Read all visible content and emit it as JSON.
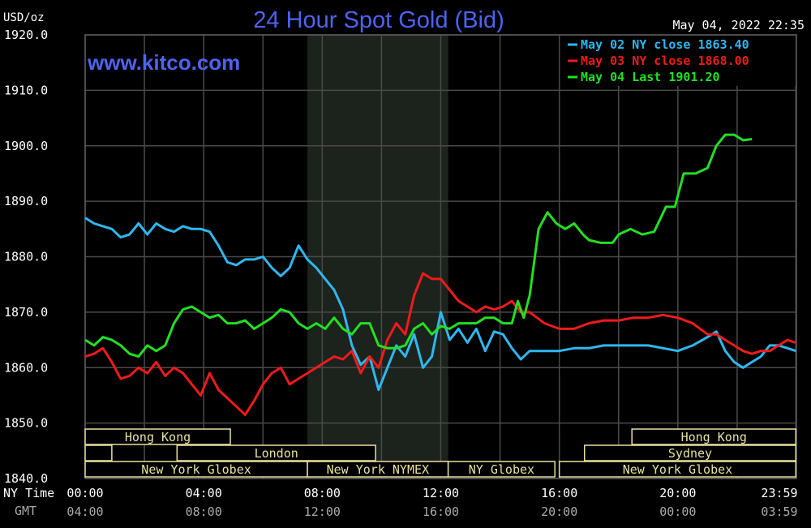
{
  "chart_data": {
    "type": "line",
    "title": "24 Hour Spot Gold (Bid)",
    "subtitle": "www.kitco.com",
    "ylabel": "USD/oz",
    "timestamp": "May 04, 2022 22:35",
    "ylim": [
      1840,
      1920
    ],
    "yticks": [
      "1920.0",
      "1910.0",
      "1900.0",
      "1890.0",
      "1880.0",
      "1870.0",
      "1860.0",
      "1850.0",
      "1840.0"
    ],
    "xlim": [
      0,
      24
    ],
    "x_row_labels": [
      "NY Time",
      "GMT"
    ],
    "xticks_ny": [
      "00:00",
      "04:00",
      "08:00",
      "12:00",
      "16:00",
      "20:00",
      "23:59"
    ],
    "xticks_gmt": [
      "04:00",
      "08:00",
      "12:00",
      "16:00",
      "20:00",
      "00:00",
      "03:59"
    ],
    "shaded_range": [
      7.5,
      12.25
    ],
    "grid": true,
    "legend_position": "top-right",
    "series": [
      {
        "name": "May 02 NY close 1863.40",
        "color": "#2fb7f0",
        "x": [
          0,
          0.3,
          0.6,
          0.9,
          1.2,
          1.5,
          1.8,
          2.1,
          2.4,
          2.7,
          3.0,
          3.3,
          3.6,
          3.9,
          4.2,
          4.5,
          4.8,
          5.1,
          5.4,
          5.7,
          6.0,
          6.3,
          6.6,
          6.9,
          7.2,
          7.5,
          7.8,
          8.1,
          8.4,
          8.7,
          9.0,
          9.3,
          9.6,
          9.9,
          10.2,
          10.5,
          10.8,
          11.1,
          11.4,
          11.7,
          12.0,
          12.3,
          12.6,
          12.9,
          13.2,
          13.5,
          13.8,
          14.1,
          14.4,
          14.7,
          15.0,
          15.5,
          16.0,
          16.5,
          17.0,
          17.5,
          18.0,
          18.5,
          19.0,
          19.5,
          20.0,
          20.5,
          21.0,
          21.3,
          21.6,
          21.9,
          22.2,
          22.5,
          22.8,
          23.1,
          23.4,
          23.7,
          23.98
        ],
        "y": [
          1887,
          1886,
          1885.5,
          1885,
          1883.5,
          1884,
          1886,
          1884,
          1886,
          1885,
          1884.5,
          1885.5,
          1885,
          1885,
          1884.5,
          1882,
          1879,
          1878.5,
          1879.5,
          1879.5,
          1880,
          1878,
          1876.5,
          1878,
          1882,
          1879.5,
          1878,
          1876,
          1874,
          1870.5,
          1864,
          1860.5,
          1862,
          1856,
          1860,
          1864,
          1862,
          1866,
          1860,
          1862,
          1870,
          1865,
          1867,
          1864.5,
          1867,
          1863,
          1866.5,
          1866,
          1863.5,
          1861.5,
          1863,
          1863,
          1863,
          1863.5,
          1863.5,
          1864,
          1864,
          1864,
          1864,
          1863.5,
          1863,
          1864,
          1865.5,
          1866.5,
          1863,
          1861,
          1860,
          1861,
          1862,
          1864,
          1864,
          1863.5,
          1863
        ]
      },
      {
        "name": "May 03 NY close 1868.00",
        "color": "#ee1b1b",
        "x": [
          0,
          0.3,
          0.6,
          0.9,
          1.2,
          1.5,
          1.8,
          2.1,
          2.4,
          2.7,
          3.0,
          3.3,
          3.6,
          3.9,
          4.2,
          4.5,
          4.8,
          5.1,
          5.4,
          5.7,
          6.0,
          6.3,
          6.6,
          6.9,
          7.2,
          7.5,
          7.8,
          8.1,
          8.4,
          8.7,
          9.0,
          9.3,
          9.6,
          9.9,
          10.2,
          10.5,
          10.8,
          11.1,
          11.4,
          11.7,
          12.0,
          12.3,
          12.6,
          12.9,
          13.2,
          13.5,
          13.8,
          14.1,
          14.4,
          14.7,
          15.0,
          15.5,
          16.0,
          16.5,
          17.0,
          17.5,
          18.0,
          18.5,
          19.0,
          19.5,
          20.0,
          20.5,
          21.0,
          21.3,
          21.6,
          21.9,
          22.2,
          22.5,
          22.8,
          23.1,
          23.4,
          23.7,
          23.98
        ],
        "y": [
          1862,
          1862.5,
          1863.5,
          1861,
          1858,
          1858.5,
          1860,
          1859,
          1861,
          1858.5,
          1860,
          1859,
          1857,
          1855,
          1859,
          1856,
          1854.5,
          1853,
          1851.5,
          1854,
          1857,
          1859,
          1860,
          1857,
          1858,
          1859,
          1860,
          1861,
          1862,
          1861.5,
          1863,
          1859,
          1862,
          1860,
          1865,
          1868,
          1866,
          1873,
          1877,
          1876,
          1876,
          1874,
          1872,
          1871,
          1870,
          1871,
          1870.5,
          1871,
          1872,
          1870,
          1870,
          1868,
          1867,
          1867,
          1868,
          1868.5,
          1868.5,
          1869,
          1869,
          1869.5,
          1869,
          1868,
          1866,
          1866,
          1865,
          1864,
          1863,
          1862.5,
          1863,
          1863,
          1864,
          1865,
          1864.5
        ]
      },
      {
        "name": "May 04 Last 1901.20",
        "color": "#22e022",
        "x": [
          0,
          0.3,
          0.6,
          0.9,
          1.2,
          1.5,
          1.8,
          2.1,
          2.4,
          2.7,
          3.0,
          3.3,
          3.6,
          3.9,
          4.2,
          4.5,
          4.8,
          5.1,
          5.4,
          5.7,
          6.0,
          6.3,
          6.6,
          6.9,
          7.2,
          7.5,
          7.8,
          8.1,
          8.4,
          8.7,
          9.0,
          9.3,
          9.6,
          9.9,
          10.2,
          10.5,
          10.8,
          11.1,
          11.4,
          11.7,
          12.0,
          12.3,
          12.6,
          12.9,
          13.2,
          13.5,
          13.8,
          14.1,
          14.4,
          14.6,
          14.8,
          15.0,
          15.3,
          15.6,
          15.9,
          16.2,
          16.5,
          16.8,
          17.0,
          17.4,
          17.8,
          18.0,
          18.4,
          18.8,
          19.2,
          19.6,
          19.9,
          20.2,
          20.6,
          21.0,
          21.3,
          21.6,
          21.9,
          22.2,
          22.5
        ],
        "y": [
          1865,
          1864,
          1865.5,
          1865,
          1864,
          1862.5,
          1862,
          1864,
          1863,
          1864,
          1868,
          1870.5,
          1871,
          1870,
          1869,
          1869.5,
          1868,
          1868,
          1868.5,
          1867,
          1868,
          1869,
          1870.5,
          1870,
          1868,
          1867,
          1868,
          1867,
          1869,
          1867,
          1866,
          1868,
          1868,
          1864,
          1863.5,
          1863.5,
          1864,
          1867,
          1868,
          1866,
          1867.5,
          1867,
          1868,
          1868,
          1868,
          1869,
          1869,
          1868,
          1868,
          1872,
          1869,
          1873,
          1885,
          1888,
          1886,
          1885,
          1886,
          1884,
          1883,
          1882.5,
          1882.5,
          1884,
          1885,
          1884,
          1884.5,
          1889,
          1889,
          1895,
          1895,
          1896,
          1900,
          1902,
          1902,
          1901,
          1901.2
        ]
      }
    ],
    "sessions": [
      {
        "label": "Hong Kong",
        "row": 0,
        "start": 0,
        "end": 4.9
      },
      {
        "label": "",
        "row": 1,
        "start": 0,
        "end": 0.9
      },
      {
        "label": "London",
        "row": 1,
        "start": 3.1,
        "end": 9.8
      },
      {
        "label": "New York Globex",
        "row": 2,
        "start": 0,
        "end": 7.5
      },
      {
        "label": "New York NYMEX",
        "row": 2,
        "start": 7.5,
        "end": 12.25
      },
      {
        "label": "NY Globex",
        "row": 2,
        "start": 12.25,
        "end": 15.85
      },
      {
        "label": "Hong Kong",
        "row": 0,
        "start": 18.45,
        "end": 23.98
      },
      {
        "label": "Sydney",
        "row": 1,
        "start": 16.85,
        "end": 23.98
      },
      {
        "label": "New York Globex",
        "row": 2,
        "start": 16.0,
        "end": 23.98
      }
    ]
  }
}
